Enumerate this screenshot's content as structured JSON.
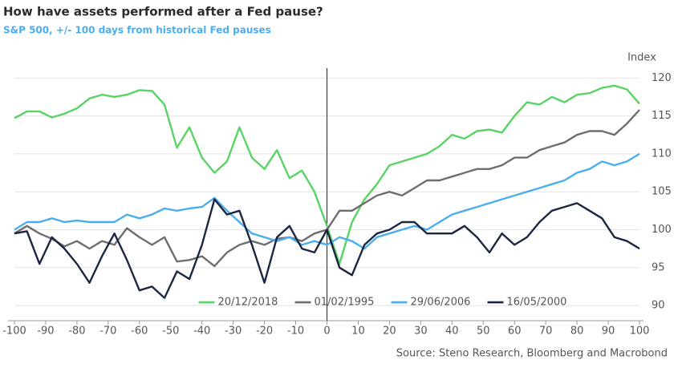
{
  "chart_data": {
    "type": "line",
    "title": "How have assets performed after a Fed pause?",
    "subtitle": "S&P 500, +/- 100 days from historical Fed pauses",
    "y_label": "Index",
    "source": "Source: Steno Research, Bloomberg and Macrobond",
    "x": [
      -100,
      -96,
      -92,
      -88,
      -84,
      -80,
      -76,
      -72,
      -68,
      -64,
      -60,
      -56,
      -52,
      -48,
      -44,
      -40,
      -36,
      -32,
      -28,
      -24,
      -20,
      -16,
      -12,
      -8,
      -4,
      0,
      4,
      8,
      12,
      16,
      20,
      24,
      28,
      32,
      36,
      40,
      44,
      48,
      52,
      56,
      60,
      64,
      68,
      72,
      76,
      80,
      84,
      88,
      92,
      96,
      100
    ],
    "series": [
      {
        "name": "20/12/2018",
        "color": "#5ad366",
        "values": [
          114.7,
          115.6,
          115.6,
          114.8,
          115.3,
          116.0,
          117.3,
          117.8,
          117.5,
          117.8,
          118.4,
          118.3,
          116.5,
          110.8,
          113.5,
          109.5,
          107.5,
          109.0,
          113.5,
          109.5,
          108.0,
          110.5,
          106.8,
          107.8,
          105.0,
          100.5,
          95.5,
          101.0,
          104.0,
          106.0,
          108.5,
          109.0,
          109.5,
          110.0,
          111.0,
          112.5,
          112.0,
          113.0,
          113.2,
          112.8,
          115.0,
          116.8,
          116.5,
          117.5,
          116.8,
          117.8,
          118.0,
          118.7,
          119.0,
          118.5,
          116.6
        ]
      },
      {
        "name": "01/02/1995",
        "color": "#6e6e70",
        "values": [
          99.5,
          100.5,
          99.5,
          98.8,
          97.8,
          98.5,
          97.5,
          98.5,
          98.0,
          100.2,
          99.0,
          98.0,
          99.0,
          95.8,
          96.0,
          96.5,
          95.2,
          97.0,
          98.0,
          98.5,
          98.0,
          98.8,
          99.0,
          98.5,
          99.5,
          100.0,
          102.5,
          102.5,
          103.5,
          104.5,
          105.0,
          104.5,
          105.5,
          106.5,
          106.5,
          107.0,
          107.5,
          108.0,
          108.0,
          108.5,
          109.5,
          109.5,
          110.5,
          111.0,
          111.5,
          112.5,
          113.0,
          113.0,
          112.5,
          114.0,
          115.8
        ]
      },
      {
        "name": "29/06/2006",
        "color": "#4aaeee",
        "values": [
          100.0,
          101.0,
          101.0,
          101.5,
          101.0,
          101.2,
          101.0,
          101.0,
          101.0,
          102.0,
          101.5,
          102.0,
          102.8,
          102.5,
          102.8,
          103.0,
          104.2,
          102.5,
          101.0,
          99.5,
          99.0,
          98.5,
          99.0,
          98.0,
          98.5,
          98.0,
          99.0,
          98.5,
          97.5,
          99.0,
          99.5,
          100.0,
          100.5,
          100.0,
          101.0,
          102.0,
          102.5,
          103.0,
          103.5,
          104.0,
          104.5,
          105.0,
          105.5,
          106.0,
          106.5,
          107.5,
          108.0,
          109.0,
          108.5,
          109.0,
          110.0
        ]
      },
      {
        "name": "16/05/2000",
        "color": "#1b2641",
        "values": [
          99.5,
          99.8,
          95.5,
          99.0,
          97.5,
          95.5,
          93.0,
          96.5,
          99.5,
          96.0,
          92.0,
          92.5,
          91.0,
          94.5,
          93.5,
          98.0,
          104.0,
          102.0,
          102.5,
          98.0,
          93.0,
          99.0,
          100.5,
          97.5,
          97.0,
          100.0,
          95.0,
          94.0,
          98.0,
          99.5,
          100.0,
          101.0,
          101.0,
          99.5,
          99.5,
          99.5,
          100.5,
          99.0,
          97.0,
          99.5,
          98.0,
          99.0,
          101.0,
          102.5,
          103.0,
          103.5,
          102.5,
          101.5,
          99.0,
          98.5,
          97.5
        ]
      }
    ],
    "xlim": [
      -100,
      100
    ],
    "ylim": [
      88,
      121.3
    ],
    "xticks": [
      -100,
      -90,
      -80,
      -70,
      -60,
      -50,
      -40,
      -30,
      -20,
      -10,
      0,
      10,
      20,
      30,
      40,
      50,
      60,
      70,
      80,
      90,
      100
    ],
    "yticks": [
      90,
      95,
      100,
      105,
      110,
      115,
      120
    ],
    "vline": 0,
    "vline_color": "#1b2641",
    "grid": true,
    "legend": "lower center"
  }
}
